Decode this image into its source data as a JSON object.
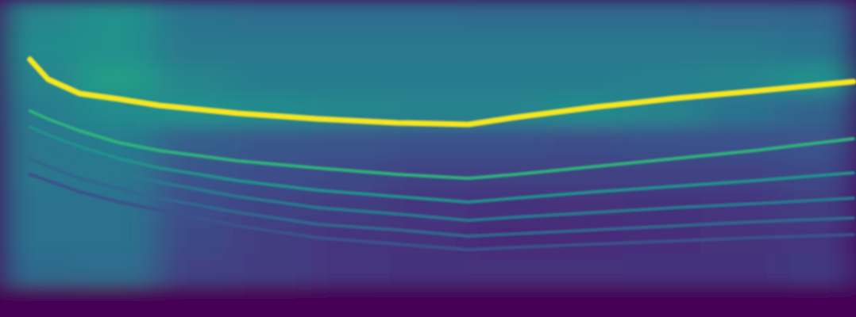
{
  "chart_data": {
    "type": "spectrogram",
    "tick_labels": false,
    "xlim": [
      0,
      100
    ],
    "ylim": [
      0,
      100
    ],
    "color_range": [
      0,
      1
    ],
    "cells": [
      [
        0.45,
        0.5,
        0.38,
        0.36,
        0.36,
        0.36,
        0.35,
        0.35,
        0.35,
        0.34,
        0.33
      ],
      [
        0.48,
        0.5,
        0.4,
        0.4,
        0.4,
        0.4,
        0.4,
        0.4,
        0.4,
        0.4,
        0.38
      ],
      [
        0.45,
        0.55,
        0.45,
        0.42,
        0.42,
        0.42,
        0.42,
        0.42,
        0.43,
        0.45,
        0.5
      ],
      [
        0.42,
        0.48,
        0.5,
        0.48,
        0.46,
        0.45,
        0.45,
        0.48,
        0.45,
        0.38,
        0.32
      ],
      [
        0.4,
        0.42,
        0.3,
        0.28,
        0.26,
        0.25,
        0.25,
        0.24,
        0.25,
        0.25,
        0.26
      ],
      [
        0.4,
        0.4,
        0.26,
        0.24,
        0.22,
        0.2,
        0.2,
        0.2,
        0.2,
        0.2,
        0.22
      ],
      [
        0.38,
        0.38,
        0.24,
        0.2,
        0.18,
        0.16,
        0.15,
        0.14,
        0.15,
        0.16,
        0.18
      ],
      [
        0.38,
        0.38,
        0.22,
        0.18,
        0.16,
        0.14,
        0.12,
        0.12,
        0.13,
        0.14,
        0.16
      ],
      [
        0.35,
        0.36,
        0.2,
        0.18,
        0.16,
        0.15,
        0.14,
        0.14,
        0.15,
        0.15,
        0.17
      ],
      [
        0.0,
        0.0,
        0.0,
        0.0,
        0.0,
        0.0,
        0.0,
        0.0,
        0.0,
        0.0,
        0.0
      ]
    ],
    "x": [
      3.5,
      5.6,
      9.3,
      13.9,
      18.6,
      27.8,
      37.1,
      46.4,
      54.7,
      60.3,
      69.6,
      78.9,
      88.1,
      99.7
    ],
    "series": [
      {
        "color": "#f6e620",
        "values": [
          81.25,
          75,
          70.5,
          68.75,
          66.75,
          64.25,
          62.5,
          61.25,
          60.75,
          63,
          66.25,
          69,
          71.25,
          74.25
        ]
      },
      {
        "color": "#2fb47c",
        "values": [
          65,
          62.5,
          58.75,
          55,
          52.5,
          49.25,
          47,
          45,
          43.75,
          45,
          47.5,
          50,
          52.5,
          56.25
        ]
      },
      {
        "color": "#21918c",
        "values": [
          60,
          57.5,
          53.75,
          50,
          47,
          43,
          40,
          38,
          36.25,
          37.5,
          39.5,
          41.25,
          43,
          45.5
        ]
      },
      {
        "color": "#2a788e",
        "values": [
          55,
          52.5,
          48.75,
          45.5,
          42.5,
          38,
          34.5,
          32.5,
          30.5,
          31.5,
          33,
          34.5,
          35.75,
          37.5
        ]
      },
      {
        "color": "#31688e",
        "values": [
          50,
          47.5,
          43.75,
          40.5,
          37.5,
          33,
          29.25,
          27.5,
          25.5,
          26.25,
          27.5,
          28.75,
          30,
          31.25
        ]
      },
      {
        "color": "#3b528b",
        "values": [
          45,
          43,
          39.5,
          36.25,
          33.75,
          28.75,
          25,
          23,
          21.25,
          22,
          23,
          24,
          25,
          26
        ]
      }
    ]
  }
}
